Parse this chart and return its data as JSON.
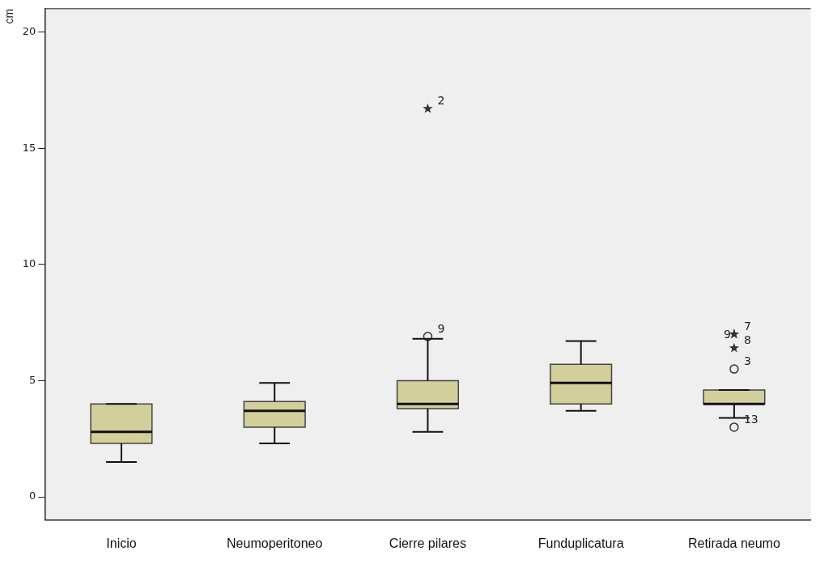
{
  "chart_data": {
    "type": "box",
    "ylabel": "cm",
    "categories": [
      "Inicio",
      "Neumoperitoneo",
      "Cierre pilares",
      "Funduplicatura",
      "Retirada neumo"
    ],
    "color": "#d3cf9b",
    "ylim": [
      -1,
      21
    ],
    "yticks": [
      0,
      5,
      10,
      15,
      20
    ],
    "grid": false,
    "legend": false,
    "boxes": [
      {
        "low": 1.5,
        "q1": 2.3,
        "median": 2.8,
        "q3": 4.0,
        "high": 4.0
      },
      {
        "low": 2.3,
        "q1": 3.0,
        "median": 3.7,
        "q3": 4.1,
        "high": 4.9
      },
      {
        "low": 2.8,
        "q1": 3.8,
        "median": 4.0,
        "q3": 5.0,
        "high": 6.8
      },
      {
        "low": 3.7,
        "q1": 4.0,
        "median": 4.9,
        "q3": 5.7,
        "high": 6.7
      },
      {
        "low": 3.4,
        "q1": 4.0,
        "median": 4.0,
        "q3": 4.6,
        "high": 4.6
      }
    ],
    "series": [
      {
        "type": "scatter",
        "marker": "circle",
        "color": "#333333",
        "x": [
          "Cierre pilares",
          "Retirada neumo",
          "Retirada neumo"
        ],
        "values": [
          6.9,
          5.5,
          3.0
        ]
      },
      {
        "type": "scatter",
        "marker": "star",
        "color": "#333333",
        "x": [
          "Cierre pilares",
          "Retirada neumo",
          "Retirada neumo",
          "Retirada neumo"
        ],
        "values": [
          16.7,
          7.0,
          7.0,
          6.4
        ]
      }
    ],
    "annotations": [
      {
        "text": "2",
        "x": "Cierre pilares",
        "y": 16.7
      },
      {
        "text": "9",
        "x": "Cierre pilares",
        "y": 6.9
      },
      {
        "text": "7",
        "x": "Retirada neumo",
        "y": 7.0
      },
      {
        "text": "9",
        "x": "Retirada neumo",
        "y": 7.0
      },
      {
        "text": "8",
        "x": "Retirada neumo",
        "y": 6.4
      },
      {
        "text": "3",
        "x": "Retirada neumo",
        "y": 5.5
      },
      {
        "text": "13",
        "x": "Retirada neumo",
        "y": 3.0
      }
    ]
  }
}
